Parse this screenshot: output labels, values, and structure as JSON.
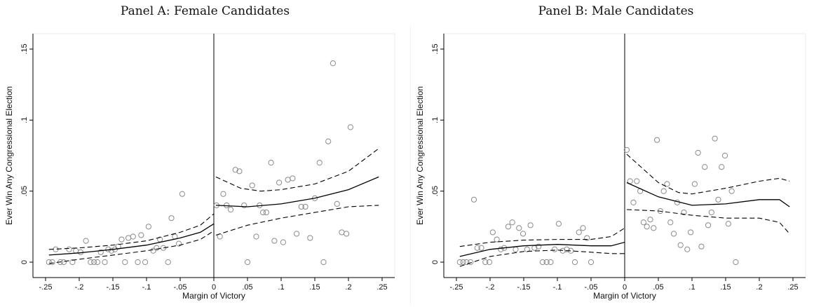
{
  "chart_data": [
    {
      "type": "scatter",
      "title": "Panel A: Female Candidates",
      "xlabel": "Margin of Victory",
      "ylabel": "Ever Win Any Congressional Election",
      "xlim": [
        -0.25,
        0.25
      ],
      "ylim": [
        0,
        0.15
      ],
      "x_ticks": [
        -0.25,
        -0.2,
        -0.15,
        -0.1,
        -0.05,
        0,
        0.05,
        0.1,
        0.15,
        0.2,
        0.25
      ],
      "x_tick_labels": [
        "-.25",
        "-.2",
        "-.15",
        "-.1",
        "-.05",
        "0",
        ".05",
        ".1",
        ".15",
        ".2",
        ".25"
      ],
      "y_ticks": [
        0,
        0.05,
        0.1,
        0.15
      ],
      "y_tick_labels": [
        "0",
        ".05",
        ".1",
        ".15"
      ],
      "threshold": 0,
      "grid": false,
      "points": [
        [
          -0.245,
          0.0
        ],
        [
          -0.24,
          0.0
        ],
        [
          -0.235,
          0.009
        ],
        [
          -0.228,
          0.0
        ],
        [
          -0.223,
          0.0
        ],
        [
          -0.215,
          0.009
        ],
        [
          -0.21,
          0.0
        ],
        [
          -0.205,
          0.008
        ],
        [
          -0.198,
          0.007
        ],
        [
          -0.19,
          0.015
        ],
        [
          -0.183,
          0.0
        ],
        [
          -0.178,
          0.0
        ],
        [
          -0.173,
          0.0
        ],
        [
          -0.168,
          0.007
        ],
        [
          -0.162,
          0.0
        ],
        [
          -0.157,
          0.009
        ],
        [
          -0.152,
          0.008
        ],
        [
          -0.147,
          0.009
        ],
        [
          -0.142,
          0.011
        ],
        [
          -0.137,
          0.016
        ],
        [
          -0.132,
          0.0
        ],
        [
          -0.127,
          0.017
        ],
        [
          -0.12,
          0.018
        ],
        [
          -0.113,
          0.0
        ],
        [
          -0.108,
          0.019
        ],
        [
          -0.102,
          0.0
        ],
        [
          -0.097,
          0.025
        ],
        [
          -0.09,
          0.008
        ],
        [
          -0.085,
          0.01
        ],
        [
          -0.08,
          0.016
        ],
        [
          -0.075,
          0.01
        ],
        [
          -0.068,
          0.0
        ],
        [
          -0.063,
          0.031
        ],
        [
          -0.058,
          0.018
        ],
        [
          -0.052,
          0.013
        ],
        [
          -0.047,
          0.048
        ],
        [
          0.004,
          0.04
        ],
        [
          0.009,
          0.018
        ],
        [
          0.014,
          0.048
        ],
        [
          0.019,
          0.04
        ],
        [
          0.025,
          0.037
        ],
        [
          0.032,
          0.065
        ],
        [
          0.038,
          0.064
        ],
        [
          0.045,
          0.04
        ],
        [
          0.05,
          0.0
        ],
        [
          0.057,
          0.054
        ],
        [
          0.063,
          0.018
        ],
        [
          0.068,
          0.04
        ],
        [
          0.073,
          0.035
        ],
        [
          0.078,
          0.035
        ],
        [
          0.085,
          0.07
        ],
        [
          0.09,
          0.015
        ],
        [
          0.097,
          0.056
        ],
        [
          0.103,
          0.014
        ],
        [
          0.11,
          0.058
        ],
        [
          0.117,
          0.059
        ],
        [
          0.123,
          0.02
        ],
        [
          0.13,
          0.039
        ],
        [
          0.136,
          0.039
        ],
        [
          0.143,
          0.017
        ],
        [
          0.15,
          0.045
        ],
        [
          0.157,
          0.07
        ],
        [
          0.163,
          0.0
        ],
        [
          0.17,
          0.085
        ],
        [
          0.177,
          0.14
        ],
        [
          0.183,
          0.041
        ],
        [
          0.19,
          0.021
        ],
        [
          0.197,
          0.02
        ],
        [
          0.203,
          0.095
        ]
      ],
      "fit_left": {
        "x": [
          -0.245,
          -0.2,
          -0.15,
          -0.1,
          -0.05,
          -0.02,
          0
        ],
        "y": [
          0.005,
          0.0065,
          0.009,
          0.012,
          0.017,
          0.021,
          0.027
        ]
      },
      "ci_upper_left": {
        "x": [
          -0.245,
          -0.2,
          -0.15,
          -0.1,
          -0.05,
          -0.02,
          0
        ],
        "y": [
          0.009,
          0.01,
          0.012,
          0.015,
          0.021,
          0.026,
          0.034
        ]
      },
      "ci_lower_left": {
        "x": [
          -0.245,
          -0.2,
          -0.15,
          -0.1,
          -0.05,
          -0.02,
          0
        ],
        "y": [
          -0.001,
          0.002,
          0.005,
          0.008,
          0.012,
          0.016,
          0.022
        ]
      },
      "fit_right": {
        "x": [
          0.003,
          0.05,
          0.1,
          0.15,
          0.2,
          0.245
        ],
        "y": [
          0.04,
          0.039,
          0.041,
          0.045,
          0.051,
          0.06
        ]
      },
      "ci_upper_right": {
        "x": [
          0.003,
          0.04,
          0.07,
          0.1,
          0.15,
          0.2,
          0.245
        ],
        "y": [
          0.06,
          0.052,
          0.05,
          0.051,
          0.055,
          0.064,
          0.08
        ]
      },
      "ci_lower_right": {
        "x": [
          0.003,
          0.05,
          0.1,
          0.15,
          0.2,
          0.245
        ],
        "y": [
          0.019,
          0.026,
          0.031,
          0.035,
          0.039,
          0.04
        ]
      }
    },
    {
      "type": "scatter",
      "title": "Panel B: Male Candidates",
      "xlabel": "Margin of Victory",
      "ylabel": "Ever Win Any Congressional Election",
      "xlim": [
        -0.25,
        0.25
      ],
      "ylim": [
        0,
        0.15
      ],
      "x_ticks": [
        -0.25,
        -0.2,
        -0.15,
        -0.1,
        -0.05,
        0,
        0.05,
        0.1,
        0.15,
        0.2,
        0.25
      ],
      "x_tick_labels": [
        "-.25",
        "-.2",
        "-.15",
        "-.1",
        "-.05",
        "0",
        ".05",
        ".1",
        ".15",
        ".2",
        ".25"
      ],
      "y_ticks": [
        0,
        0.05,
        0.1,
        0.15
      ],
      "y_tick_labels": [
        "0",
        ".05",
        ".1",
        ".15"
      ],
      "threshold": 0,
      "grid": false,
      "points": [
        [
          -0.245,
          0.0
        ],
        [
          -0.24,
          0.0
        ],
        [
          -0.235,
          0.0
        ],
        [
          -0.229,
          0.0
        ],
        [
          -0.224,
          0.044
        ],
        [
          -0.219,
          0.01
        ],
        [
          -0.213,
          0.01
        ],
        [
          -0.207,
          0.0
        ],
        [
          -0.201,
          0.0
        ],
        [
          -0.196,
          0.021
        ],
        [
          -0.19,
          0.016
        ],
        [
          -0.184,
          0.009
        ],
        [
          -0.179,
          0.01
        ],
        [
          -0.173,
          0.025
        ],
        [
          -0.167,
          0.028
        ],
        [
          -0.162,
          0.009
        ],
        [
          -0.157,
          0.024
        ],
        [
          -0.151,
          0.02
        ],
        [
          -0.145,
          0.009
        ],
        [
          -0.14,
          0.026
        ],
        [
          -0.134,
          0.01
        ],
        [
          -0.128,
          0.011
        ],
        [
          -0.122,
          0.0
        ],
        [
          -0.116,
          0.0
        ],
        [
          -0.11,
          0.0
        ],
        [
          -0.104,
          0.009
        ],
        [
          -0.098,
          0.027
        ],
        [
          -0.092,
          0.008
        ],
        [
          -0.086,
          0.009
        ],
        [
          -0.08,
          0.008
        ],
        [
          -0.074,
          0.0
        ],
        [
          -0.068,
          0.021
        ],
        [
          -0.062,
          0.024
        ],
        [
          -0.056,
          0.017
        ],
        [
          -0.05,
          0.0
        ],
        [
          0.003,
          0.079
        ],
        [
          0.008,
          0.057
        ],
        [
          0.013,
          0.042
        ],
        [
          0.018,
          0.057
        ],
        [
          0.023,
          0.05
        ],
        [
          0.028,
          0.028
        ],
        [
          0.033,
          0.025
        ],
        [
          0.038,
          0.03
        ],
        [
          0.043,
          0.024
        ],
        [
          0.048,
          0.086
        ],
        [
          0.053,
          0.036
        ],
        [
          0.058,
          0.05
        ],
        [
          0.063,
          0.055
        ],
        [
          0.068,
          0.028
        ],
        [
          0.073,
          0.02
        ],
        [
          0.078,
          0.042
        ],
        [
          0.083,
          0.012
        ],
        [
          0.088,
          0.035
        ],
        [
          0.093,
          0.009
        ],
        [
          0.098,
          0.021
        ],
        [
          0.104,
          0.055
        ],
        [
          0.109,
          0.077
        ],
        [
          0.114,
          0.011
        ],
        [
          0.119,
          0.067
        ],
        [
          0.124,
          0.026
        ],
        [
          0.129,
          0.035
        ],
        [
          0.134,
          0.087
        ],
        [
          0.139,
          0.044
        ],
        [
          0.144,
          0.067
        ],
        [
          0.149,
          0.075
        ],
        [
          0.154,
          0.027
        ],
        [
          0.159,
          0.05
        ],
        [
          0.165,
          0.0
        ]
      ],
      "fit_left": {
        "x": [
          -0.245,
          -0.2,
          -0.15,
          -0.1,
          -0.05,
          -0.02,
          0
        ],
        "y": [
          0.004,
          0.009,
          0.0115,
          0.0125,
          0.0115,
          0.0115,
          0.014
        ]
      },
      "ci_upper_left": {
        "x": [
          -0.245,
          -0.2,
          -0.15,
          -0.1,
          -0.05,
          -0.02,
          0
        ],
        "y": [
          0.011,
          0.014,
          0.0155,
          0.016,
          0.016,
          0.018,
          0.024
        ]
      },
      "ci_lower_left": {
        "x": [
          -0.245,
          -0.2,
          -0.15,
          -0.1,
          -0.05,
          -0.02,
          0
        ],
        "y": [
          -0.003,
          0.004,
          0.0075,
          0.0085,
          0.007,
          0.006,
          0.006
        ]
      },
      "fit_right": {
        "x": [
          0.003,
          0.05,
          0.1,
          0.15,
          0.2,
          0.23,
          0.245
        ],
        "y": [
          0.056,
          0.046,
          0.04,
          0.041,
          0.044,
          0.044,
          0.039
        ]
      },
      "ci_upper_right": {
        "x": [
          0.003,
          0.05,
          0.08,
          0.1,
          0.15,
          0.2,
          0.23,
          0.245
        ],
        "y": [
          0.076,
          0.056,
          0.049,
          0.048,
          0.052,
          0.057,
          0.059,
          0.057
        ]
      },
      "ci_lower_right": {
        "x": [
          0.003,
          0.05,
          0.1,
          0.15,
          0.2,
          0.23,
          0.245
        ],
        "y": [
          0.037,
          0.036,
          0.033,
          0.031,
          0.031,
          0.028,
          0.02
        ]
      }
    }
  ]
}
